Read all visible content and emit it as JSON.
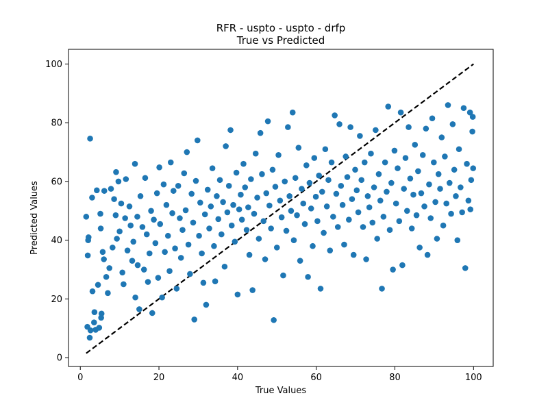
{
  "colors": {
    "point": "#1f77b4",
    "line": "#000000",
    "axis": "#000000",
    "background": "#ffffff"
  },
  "chart_data": {
    "type": "scatter",
    "title": "RFR - uspto - uspto - drfp",
    "subtitle": "True vs Predicted",
    "xlabel": "True Values",
    "ylabel": "Predicted Values",
    "xlim": [
      -3,
      105
    ],
    "ylim": [
      -3,
      105
    ],
    "xticks": [
      0,
      20,
      40,
      60,
      80,
      100
    ],
    "yticks": [
      0,
      20,
      40,
      60,
      80,
      100
    ],
    "grid": false,
    "legend": "none",
    "reference_line": {
      "style": "dashed",
      "x": [
        1.5,
        100
      ],
      "y": [
        1.5,
        100
      ]
    },
    "series": [
      {
        "points": [
          [
            2.5,
            74.6
          ],
          [
            1.5,
            48.0
          ],
          [
            2.0,
            40.0
          ],
          [
            1.8,
            10.5
          ],
          [
            2.4,
            6.8
          ],
          [
            2.6,
            9.3
          ],
          [
            1.9,
            34.8
          ],
          [
            2.1,
            41.0
          ],
          [
            3.0,
            54.5
          ],
          [
            3.1,
            22.6
          ],
          [
            3.6,
            15.5
          ],
          [
            3.5,
            12.0
          ],
          [
            3.9,
            9.5
          ],
          [
            4.2,
            57.0
          ],
          [
            4.5,
            24.8
          ],
          [
            4.8,
            10.2
          ],
          [
            5.1,
            49.0
          ],
          [
            5.2,
            44.0
          ],
          [
            5.7,
            36.0
          ],
          [
            6.0,
            33.5
          ],
          [
            5.3,
            13.6
          ],
          [
            5.4,
            15.0
          ],
          [
            6.1,
            56.8
          ],
          [
            6.6,
            27.5
          ],
          [
            7.0,
            22.0
          ],
          [
            7.4,
            30.5
          ],
          [
            7.8,
            57.5
          ],
          [
            8.2,
            37.5
          ],
          [
            8.6,
            54.0
          ],
          [
            9.0,
            48.5
          ],
          [
            9.1,
            63.2
          ],
          [
            9.3,
            40.5
          ],
          [
            9.7,
            60.0
          ],
          [
            10.0,
            43.0
          ],
          [
            10.4,
            52.5
          ],
          [
            10.7,
            29.0
          ],
          [
            11.0,
            25.0
          ],
          [
            11.4,
            47.5
          ],
          [
            11.6,
            60.8
          ],
          [
            12.0,
            36.5
          ],
          [
            12.5,
            51.5
          ],
          [
            12.8,
            45.0
          ],
          [
            13.2,
            33.0
          ],
          [
            13.5,
            39.5
          ],
          [
            13.9,
            66.0
          ],
          [
            14.0,
            20.5
          ],
          [
            14.5,
            48.0
          ],
          [
            14.6,
            31.5
          ],
          [
            15.0,
            16.5
          ],
          [
            15.3,
            55.0
          ],
          [
            15.8,
            44.5
          ],
          [
            16.2,
            30.0
          ],
          [
            16.5,
            61.2
          ],
          [
            16.9,
            42.0
          ],
          [
            17.2,
            25.8
          ],
          [
            17.6,
            35.5
          ],
          [
            18.0,
            50.0
          ],
          [
            18.3,
            15.2
          ],
          [
            18.7,
            47.0
          ],
          [
            19.1,
            39.0
          ],
          [
            19.5,
            56.0
          ],
          [
            19.8,
            27.2
          ],
          [
            20.1,
            64.8
          ],
          [
            20.3,
            45.5
          ],
          [
            20.8,
            20.5
          ],
          [
            21.2,
            59.0
          ],
          [
            21.5,
            36.0
          ],
          [
            21.9,
            52.0
          ],
          [
            22.3,
            41.5
          ],
          [
            22.7,
            29.5
          ],
          [
            23.0,
            66.5
          ],
          [
            23.4,
            49.2
          ],
          [
            23.7,
            56.8
          ],
          [
            24.1,
            37.2
          ],
          [
            24.5,
            23.5
          ],
          [
            24.9,
            58.5
          ],
          [
            25.3,
            47.5
          ],
          [
            25.6,
            34.0
          ],
          [
            26.0,
            43.5
          ],
          [
            26.4,
            62.8
          ],
          [
            26.8,
            50.2
          ],
          [
            27.1,
            70.0
          ],
          [
            27.5,
            38.5
          ],
          [
            27.9,
            28.5
          ],
          [
            28.3,
            55.8
          ],
          [
            28.7,
            46.0
          ],
          [
            29.0,
            13.0
          ],
          [
            29.4,
            60.2
          ],
          [
            29.8,
            74.0
          ],
          [
            30.2,
            41.5
          ],
          [
            30.5,
            52.8
          ],
          [
            30.9,
            35.5
          ],
          [
            31.3,
            25.5
          ],
          [
            31.7,
            48.8
          ],
          [
            32.0,
            18.0
          ],
          [
            32.4,
            57.2
          ],
          [
            32.8,
            44.0
          ],
          [
            33.2,
            51.5
          ],
          [
            33.6,
            64.5
          ],
          [
            34.0,
            38.0
          ],
          [
            34.3,
            26.0
          ],
          [
            34.7,
            55.0
          ],
          [
            35.1,
            47.2
          ],
          [
            35.5,
            60.5
          ],
          [
            35.9,
            42.0
          ],
          [
            36.3,
            53.0
          ],
          [
            36.7,
            31.0
          ],
          [
            37.0,
            72.0
          ],
          [
            37.4,
            49.5
          ],
          [
            37.8,
            58.5
          ],
          [
            38.2,
            77.5
          ],
          [
            38.5,
            45.0
          ],
          [
            38.9,
            52.0
          ],
          [
            39.3,
            39.5
          ],
          [
            39.7,
            63.0
          ],
          [
            40.0,
            21.5
          ],
          [
            40.4,
            50.5
          ],
          [
            40.8,
            55.5
          ],
          [
            41.1,
            47.0
          ],
          [
            41.5,
            66.0
          ],
          [
            41.9,
            58.0
          ],
          [
            42.3,
            43.5
          ],
          [
            42.7,
            51.2
          ],
          [
            43.0,
            35.0
          ],
          [
            43.4,
            60.8
          ],
          [
            43.8,
            23.0
          ],
          [
            44.2,
            49.0
          ],
          [
            44.6,
            69.5
          ],
          [
            45.0,
            54.5
          ],
          [
            45.4,
            40.5
          ],
          [
            45.8,
            76.5
          ],
          [
            46.2,
            62.5
          ],
          [
            46.6,
            46.5
          ],
          [
            47.0,
            33.5
          ],
          [
            47.3,
            56.0
          ],
          [
            47.7,
            80.5
          ],
          [
            48.1,
            51.8
          ],
          [
            48.5,
            44.0
          ],
          [
            48.9,
            64.0
          ],
          [
            49.2,
            12.8
          ],
          [
            49.6,
            58.2
          ],
          [
            50.0,
            37.5
          ],
          [
            50.4,
            69.0
          ],
          [
            50.8,
            53.5
          ],
          [
            51.2,
            47.8
          ],
          [
            51.6,
            28.0
          ],
          [
            52.0,
            60.0
          ],
          [
            52.4,
            43.2
          ],
          [
            52.8,
            78.5
          ],
          [
            53.2,
            55.0
          ],
          [
            53.6,
            50.0
          ],
          [
            54.0,
            83.5
          ],
          [
            54.3,
            40.0
          ],
          [
            54.7,
            61.2
          ],
          [
            55.1,
            48.5
          ],
          [
            55.5,
            71.5
          ],
          [
            55.9,
            33.0
          ],
          [
            56.3,
            57.5
          ],
          [
            56.7,
            52.5
          ],
          [
            57.1,
            45.5
          ],
          [
            57.5,
            65.5
          ],
          [
            57.9,
            27.5
          ],
          [
            58.3,
            59.5
          ],
          [
            58.7,
            50.8
          ],
          [
            59.1,
            38.0
          ],
          [
            59.5,
            68.0
          ],
          [
            59.9,
            54.8
          ],
          [
            60.3,
            46.5
          ],
          [
            60.7,
            62.0
          ],
          [
            61.1,
            23.5
          ],
          [
            61.5,
            56.5
          ],
          [
            61.9,
            42.5
          ],
          [
            62.3,
            71.0
          ],
          [
            62.7,
            51.5
          ],
          [
            63.1,
            60.5
          ],
          [
            63.5,
            36.5
          ],
          [
            63.9,
            66.5
          ],
          [
            64.3,
            48.0
          ],
          [
            64.7,
            82.5
          ],
          [
            65.1,
            55.8
          ],
          [
            65.5,
            44.5
          ],
          [
            65.9,
            79.5
          ],
          [
            66.3,
            58.5
          ],
          [
            66.7,
            52.0
          ],
          [
            67.1,
            38.5
          ],
          [
            67.5,
            68.5
          ],
          [
            67.9,
            61.5
          ],
          [
            68.3,
            47.0
          ],
          [
            68.7,
            78.5
          ],
          [
            69.1,
            54.0
          ],
          [
            69.5,
            35.0
          ],
          [
            69.9,
            64.0
          ],
          [
            70.3,
            57.0
          ],
          [
            70.7,
            49.5
          ],
          [
            71.1,
            75.5
          ],
          [
            71.5,
            60.5
          ],
          [
            71.9,
            44.5
          ],
          [
            72.3,
            66.5
          ],
          [
            72.7,
            33.5
          ],
          [
            73.1,
            55.0
          ],
          [
            73.5,
            51.2
          ],
          [
            73.9,
            69.5
          ],
          [
            74.3,
            46.0
          ],
          [
            74.7,
            58.0
          ],
          [
            75.1,
            77.5
          ],
          [
            75.5,
            40.5
          ],
          [
            75.9,
            62.5
          ],
          [
            76.3,
            53.5
          ],
          [
            76.7,
            23.5
          ],
          [
            77.1,
            48.0
          ],
          [
            77.5,
            66.5
          ],
          [
            77.9,
            56.5
          ],
          [
            78.3,
            85.5
          ],
          [
            78.7,
            43.5
          ],
          [
            79.1,
            59.5
          ],
          [
            79.5,
            30.0
          ],
          [
            79.9,
            70.5
          ],
          [
            80.3,
            52.5
          ],
          [
            80.7,
            64.5
          ],
          [
            81.1,
            46.5
          ],
          [
            81.5,
            83.5
          ],
          [
            81.9,
            31.5
          ],
          [
            82.3,
            57.5
          ],
          [
            82.7,
            68.0
          ],
          [
            83.1,
            50.0
          ],
          [
            83.5,
            78.5
          ],
          [
            83.9,
            61.0
          ],
          [
            84.3,
            44.0
          ],
          [
            84.7,
            55.5
          ],
          [
            85.1,
            72.5
          ],
          [
            85.5,
            48.5
          ],
          [
            85.9,
            63.5
          ],
          [
            86.3,
            37.5
          ],
          [
            86.7,
            56.0
          ],
          [
            87.1,
            69.0
          ],
          [
            87.5,
            51.5
          ],
          [
            87.9,
            78.0
          ],
          [
            88.3,
            35.0
          ],
          [
            88.7,
            59.0
          ],
          [
            89.1,
            47.5
          ],
          [
            89.5,
            81.5
          ],
          [
            89.9,
            66.5
          ],
          [
            90.3,
            53.0
          ],
          [
            90.7,
            40.5
          ],
          [
            91.1,
            62.5
          ],
          [
            91.5,
            57.5
          ],
          [
            91.9,
            75.0
          ],
          [
            92.3,
            45.0
          ],
          [
            92.7,
            68.5
          ],
          [
            93.1,
            52.5
          ],
          [
            93.5,
            86.0
          ],
          [
            93.9,
            59.5
          ],
          [
            94.3,
            49.0
          ],
          [
            94.7,
            79.5
          ],
          [
            95.1,
            64.0
          ],
          [
            95.5,
            55.0
          ],
          [
            95.9,
            40.0
          ],
          [
            96.3,
            71.0
          ],
          [
            96.7,
            58.0
          ],
          [
            97.1,
            49.5
          ],
          [
            97.5,
            85.0
          ],
          [
            97.9,
            30.5
          ],
          [
            98.3,
            66.0
          ],
          [
            98.7,
            53.5
          ],
          [
            99.1,
            83.5
          ],
          [
            99.4,
            60.5
          ],
          [
            99.7,
            77.0
          ],
          [
            99.9,
            64.5
          ],
          [
            99.8,
            82.0
          ],
          [
            99.2,
            50.5
          ]
        ]
      }
    ]
  }
}
